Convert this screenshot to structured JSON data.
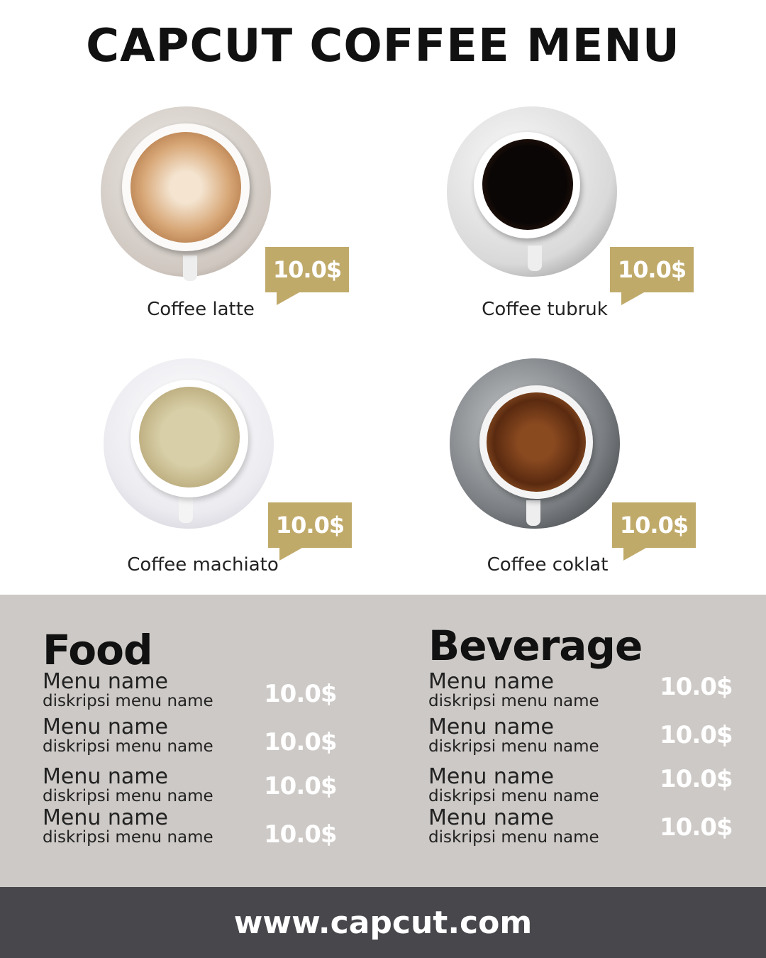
{
  "title": "CAPCUT COFFEE MENU",
  "featured": [
    {
      "name": "Coffee latte",
      "price": "10.0$"
    },
    {
      "name": "Coffee tubruk",
      "price": "10.0$"
    },
    {
      "name": "Coffee machiato",
      "price": "10.0$"
    },
    {
      "name": "Coffee coklat",
      "price": "10.0$"
    }
  ],
  "colors": {
    "tag": "#c0aa6a",
    "band": "#cdc9c6",
    "footer": "#48474c"
  },
  "food": {
    "title": "Food",
    "items": [
      {
        "name": "Menu name",
        "desc": "diskripsi menu name",
        "price": "10.0$"
      },
      {
        "name": "Menu name",
        "desc": "diskripsi menu name",
        "price": "10.0$"
      },
      {
        "name": "Menu name",
        "desc": "diskripsi menu name",
        "price": "10.0$"
      },
      {
        "name": "Menu name",
        "desc": "diskripsi menu name",
        "price": "10.0$"
      }
    ]
  },
  "beverage": {
    "title": "Beverage",
    "items": [
      {
        "name": "Menu name",
        "desc": "diskripsi menu name",
        "price": "10.0$"
      },
      {
        "name": "Menu name",
        "desc": "diskripsi menu name",
        "price": "10.0$"
      },
      {
        "name": "Menu name",
        "desc": "diskripsi menu name",
        "price": "10.0$"
      },
      {
        "name": "Menu name",
        "desc": "diskripsi menu name",
        "price": "10.0$"
      }
    ]
  },
  "footer": "www.capcut.com"
}
